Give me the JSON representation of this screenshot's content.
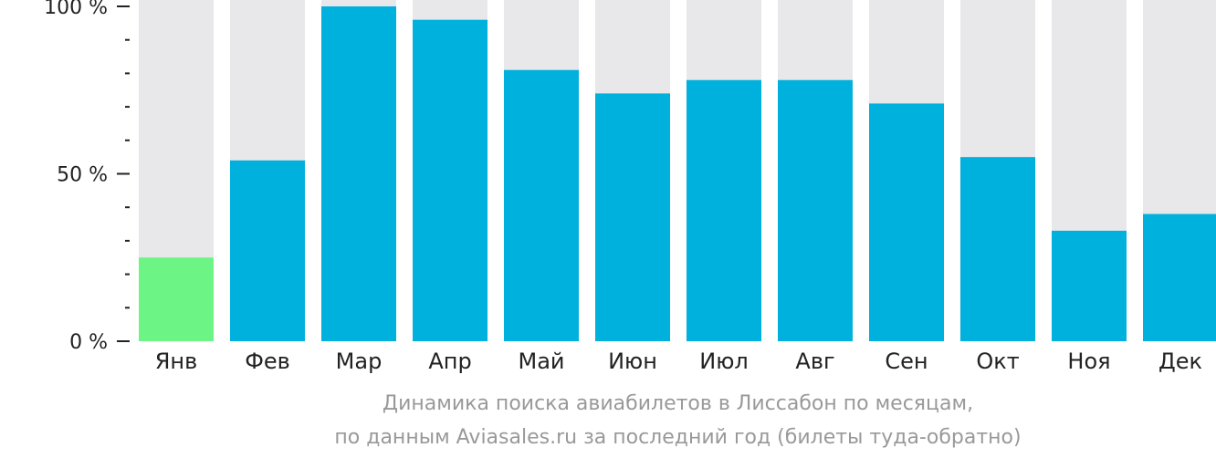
{
  "colors": {
    "background_bar": "#e8e8ea",
    "bar": "#00b0dd",
    "bar_highlight": "#6cf584",
    "axis_text": "#222222",
    "caption_text": "#999999"
  },
  "caption": {
    "line1": "Динамика поиска авиабилетов в Лиссабон по месяцам,",
    "line2": "по данным Aviasales.ru за последний год (билеты туда-обратно)"
  },
  "chart_data": {
    "type": "bar",
    "title": "",
    "xlabel": "",
    "ylabel": "",
    "ylim": [
      0,
      100
    ],
    "y_ticks": [
      {
        "value": 0,
        "label": "0 %"
      },
      {
        "value": 50,
        "label": "50 %"
      },
      {
        "value": 100,
        "label": "100 %"
      }
    ],
    "categories": [
      "Янв",
      "Фев",
      "Мар",
      "Апр",
      "Май",
      "Июн",
      "Июл",
      "Авг",
      "Сен",
      "Окт",
      "Ноя",
      "Дек"
    ],
    "values": [
      25,
      54,
      100,
      96,
      81,
      74,
      78,
      78,
      71,
      55,
      33,
      38
    ],
    "highlight_index": 0
  }
}
